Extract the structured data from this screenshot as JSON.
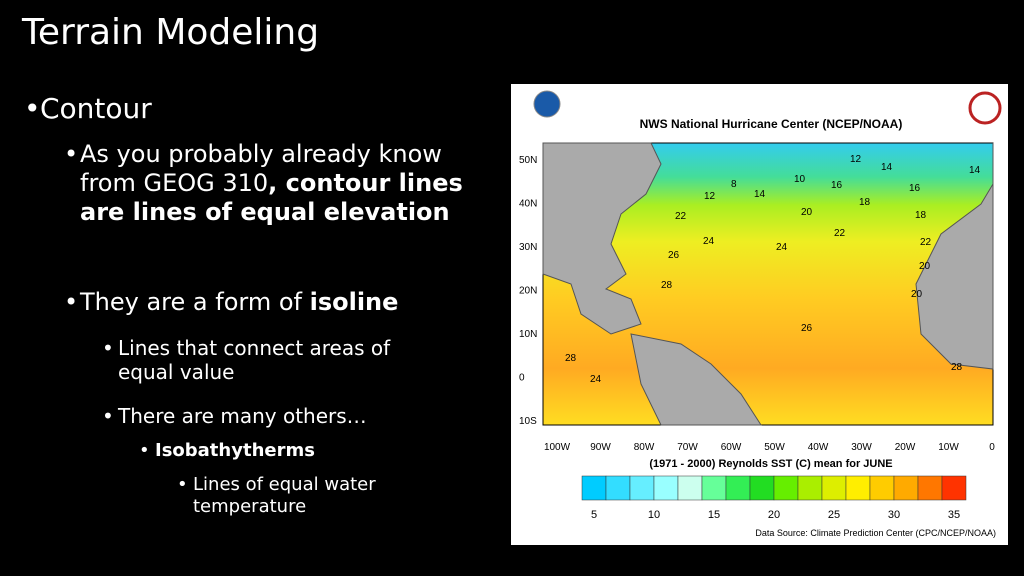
{
  "slide": {
    "title": "Terrain Modeling",
    "bullets": [
      {
        "level": 1,
        "parts": [
          {
            "text": "Contour",
            "bold": false
          }
        ]
      },
      {
        "level": 2,
        "parts": [
          {
            "text": "As you probably already know from GEOG 310",
            "bold": false
          },
          {
            "text": ", contour lines are lines of equal elevation",
            "bold": true
          }
        ]
      },
      {
        "level": 2,
        "parts": [
          {
            "text": "They are a form of ",
            "bold": false
          },
          {
            "text": "isoline",
            "bold": true
          }
        ]
      },
      {
        "level": 3,
        "parts": [
          {
            "text": "Lines that connect areas of equal value",
            "bold": false
          }
        ]
      },
      {
        "level": 3,
        "parts": [
          {
            "text": "There are many others…",
            "bold": false
          }
        ]
      },
      {
        "level": 4,
        "parts": [
          {
            "text": "Isobathytherms",
            "bold": true
          }
        ]
      },
      {
        "level": 5,
        "parts": [
          {
            "text": "Lines of equal water temperature",
            "bold": false
          }
        ]
      }
    ]
  },
  "figure": {
    "header": "NWS National Hurricane Center (NCEP/NOAA)",
    "lat_labels": [
      "50N",
      "40N",
      "30N",
      "20N",
      "10N",
      "0",
      "10S"
    ],
    "lon_labels": [
      "100W",
      "90W",
      "80W",
      "70W",
      "60W",
      "50W",
      "40W",
      "30W",
      "20W",
      "10W",
      "0"
    ],
    "contour_labels": [
      "12",
      "14",
      "14",
      "8",
      "10",
      "12",
      "14",
      "16",
      "16",
      "22",
      "20",
      "18",
      "18",
      "22",
      "24",
      "24",
      "22",
      "20",
      "26",
      "28",
      "26",
      "20",
      "28",
      "24",
      "28"
    ],
    "caption": "(1971 - 2000) Reynolds SST (C) mean for JUNE",
    "colorbar_labels": [
      "5",
      "10",
      "15",
      "20",
      "25",
      "30",
      "35"
    ],
    "source": "Data Source: Climate Prediction Center (CPC/NCEP/NOAA)"
  }
}
